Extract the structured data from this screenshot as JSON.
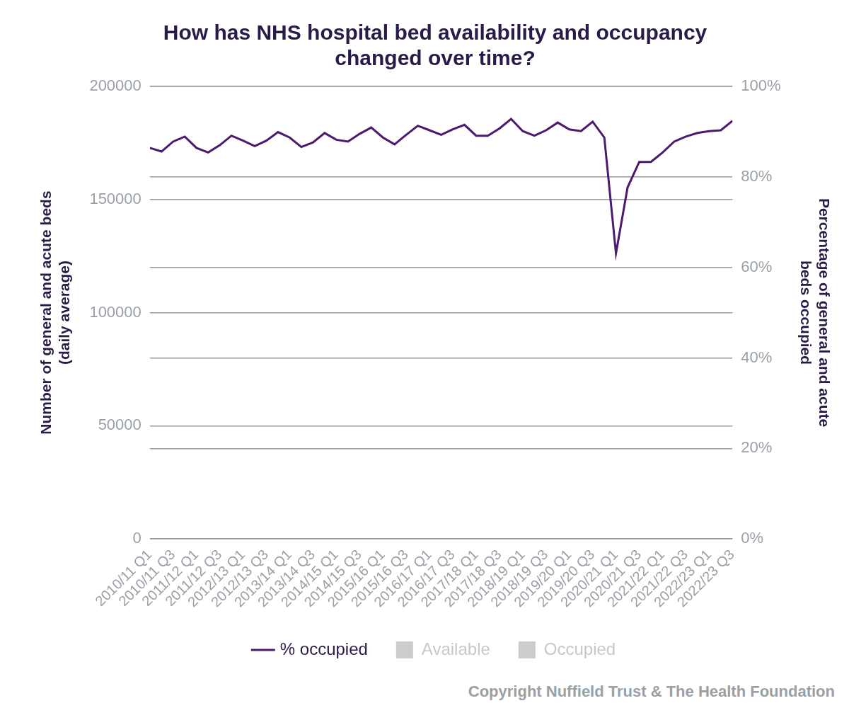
{
  "chart_data": {
    "type": "bar",
    "title": [
      "How has NHS hospital bed availability and occupancy",
      "changed over time?"
    ],
    "ylabel": [
      "Number of general and acute beds",
      "(daily average)"
    ],
    "y2label": [
      "Percentage of general and acute",
      "beds occupied"
    ],
    "source": "Copyright Nuffield Trust & The Health Foundation",
    "categories": [
      "2010/11 Q1",
      null,
      "2010/11 Q3",
      null,
      "2011/12 Q1",
      null,
      "2011/12 Q3",
      null,
      "2012/13 Q1",
      null,
      "2012/13 Q3",
      null,
      "2013/14 Q1",
      null,
      "2013/14 Q3",
      null,
      "2014/15 Q1",
      null,
      "2014/15 Q3",
      null,
      "2015/16 Q1",
      null,
      "2015/16 Q3",
      null,
      "2016/17 Q1",
      null,
      "2016/17 Q3",
      null,
      "2017/18 Q1",
      null,
      "2017/18 Q3",
      null,
      "2018/19 Q1",
      null,
      "2018/19 Q3",
      null,
      "2019/20 Q1",
      null,
      "2019/20 Q3",
      null,
      "2020/21 Q1",
      null,
      "2020/21 Q3",
      null,
      "2021/22 Q1",
      null,
      "2021/22 Q3",
      null,
      "2022/23 Q1",
      null,
      "2022/23 Q3"
    ],
    "series": [
      {
        "name": "Available",
        "type": "bar",
        "color": "#cccccc",
        "axis": "y",
        "values": [
          null,
          null,
          null,
          null,
          null,
          null,
          null,
          null,
          null,
          null,
          null,
          null,
          null,
          null,
          null,
          null,
          null,
          null,
          null,
          null,
          null,
          null,
          null,
          null,
          null,
          null,
          null,
          null,
          null,
          null,
          null,
          null,
          null,
          null,
          null,
          null,
          null,
          null,
          null,
          null,
          null,
          null,
          null,
          null,
          null,
          null,
          null,
          null,
          null,
          null,
          null
        ]
      },
      {
        "name": "Occupied",
        "type": "bar",
        "color": "#cccccc",
        "axis": "y",
        "values": [
          null,
          null,
          null,
          null,
          null,
          null,
          null,
          null,
          null,
          null,
          null,
          null,
          null,
          null,
          null,
          null,
          null,
          null,
          null,
          null,
          null,
          null,
          null,
          null,
          null,
          null,
          null,
          null,
          null,
          null,
          null,
          null,
          null,
          null,
          null,
          null,
          null,
          null,
          null,
          null,
          null,
          null,
          null,
          null,
          null,
          null,
          null,
          null,
          null,
          null,
          null
        ]
      },
      {
        "name": "% occupied",
        "type": "line",
        "color": "#4b1a6e",
        "axis": "y2",
        "values": [
          86.4,
          85.6,
          87.8,
          88.9,
          86.4,
          85.4,
          87.0,
          89.1,
          88.0,
          86.8,
          88.0,
          89.9,
          88.7,
          86.6,
          87.6,
          89.7,
          88.2,
          87.8,
          89.5,
          90.9,
          88.7,
          87.2,
          89.3,
          91.3,
          90.3,
          89.3,
          90.5,
          91.5,
          89.1,
          89.1,
          90.7,
          92.8,
          90.1,
          89.1,
          90.3,
          92.0,
          90.5,
          90.1,
          92.2,
          88.7,
          63.1,
          77.7,
          83.3,
          83.3,
          85.4,
          87.8,
          88.9,
          89.7,
          90.1,
          90.3,
          92.4
        ]
      }
    ],
    "ylim": [
      0,
      200000
    ],
    "yticks": [
      0,
      50000,
      100000,
      150000,
      200000
    ],
    "y2lim": [
      0,
      100
    ],
    "y2ticks": [
      {
        "value": 0,
        "label": "0%"
      },
      {
        "value": 20,
        "label": "20%"
      },
      {
        "value": 40,
        "label": "40%"
      },
      {
        "value": 60,
        "label": "60%"
      },
      {
        "value": 80,
        "label": "80%"
      },
      {
        "value": 100,
        "label": "100%"
      }
    ],
    "grid": true,
    "legend": "bottom"
  }
}
